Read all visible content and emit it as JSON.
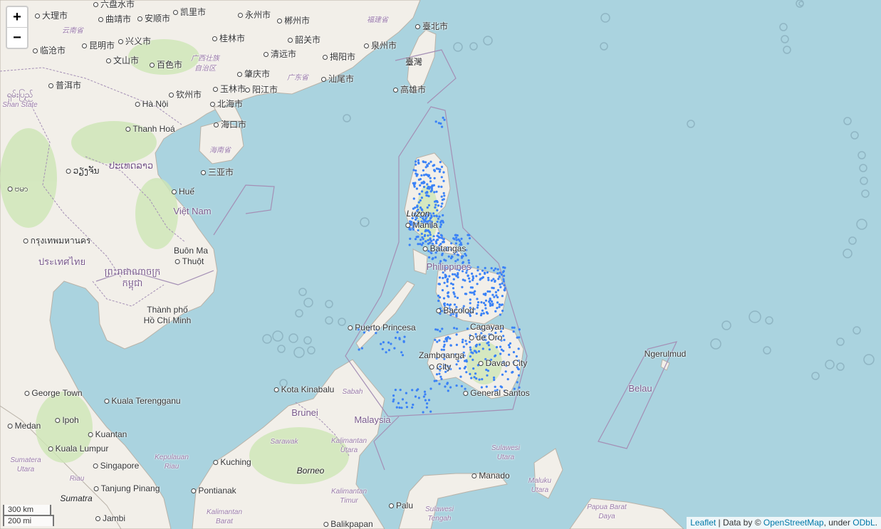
{
  "zoom": {
    "in_label": "+",
    "out_label": "−"
  },
  "scale": {
    "km_label": "300 km",
    "mi_label": "200 mi"
  },
  "attribution": {
    "leaflet_link": "Leaflet",
    "separator": " | Data by © ",
    "osm_link": "OpenStreetMap",
    "under_text": ", under ",
    "odbl_link": "ODbL",
    "end": "."
  },
  "colors": {
    "sea": "#aad3df",
    "land": "#f2efe9",
    "forest": "#cde6b5",
    "border": "#a48fb5",
    "marker": "#3b82f6"
  },
  "labels": {
    "dali": "大理市",
    "liupanshui": "六盘水市",
    "kaili": "凯里市",
    "yongzhou": "永州市",
    "chenzhou": "郴州市",
    "yunnan": "云南省",
    "qujing": "曲靖市",
    "anshun": "安顺市",
    "fujian": "福建省",
    "taipei": "臺北市",
    "guilin": "桂林市",
    "shaoguan": "韶关市",
    "quanzhou": "泉州市",
    "lincang": "临沧市",
    "kunming": "昆明市",
    "xingyi": "兴义市",
    "taiwan": "臺灣",
    "guangxi": "广西壮族自治区",
    "qingyuan": "清远市",
    "jieyang": "揭阳市",
    "wenshan": "文山市",
    "baise": "百色市",
    "zhaoqing": "肇庆市",
    "guangdong": "广东省",
    "shanwei": "汕尾市",
    "puer": "普洱市",
    "yulin": "玉林市",
    "yangjiang": "阳江市",
    "kaohsiung": "高雄市",
    "shan_myanmar": "ရှမ်းပြည်",
    "qinzhou": "钦州市",
    "shan_state": "Shan State",
    "hanoi": "Hà Nội",
    "beihai": "北海市",
    "haikou": "海口市",
    "thanh_hoa": "Thanh Hoá",
    "hainan": "海南省",
    "sanya": "三亚市",
    "vientiane": "ວຽງຈັນ",
    "laos": "ປະເທດລາວ",
    "myanmar": "ဗမာ",
    "hue": "Huế",
    "luzon": "Luzon",
    "vietnam": "Việt Nam",
    "manila": "Manila",
    "bangkok": "กรุงเทพมหานคร",
    "buon_ma_thuot_1": "Buôn Ma",
    "buon_ma_thuot_2": "Thuột",
    "batangas": "Batangas",
    "thailand": "ประเทศไทย",
    "philippines": "Philippines",
    "cambodia_1": "ព្រះរាជាណាចក្រ",
    "cambodia_2": "កម្ពុជា",
    "hcmc_1": "Thành phố",
    "hcmc_2": "Hồ Chí Minh",
    "bacolod": "Bacolod",
    "cagayan_1": "Cagayan",
    "cagayan_2": "de Oro",
    "puerto_princesa": "Puerto Princesa",
    "ngerulmud": "Ngerulmud",
    "zamboanga_1": "Zamboanga",
    "zamboanga_2": "City",
    "davao": "Davao City",
    "belau": "Belau",
    "kota_kinabalu": "Kota Kinabalu",
    "sabah": "Sabah",
    "george_town": "George Town",
    "general_santos": "General Santos",
    "kuala_terengganu": "Kuala Terengganu",
    "brunei": "Brunei",
    "ipoh": "Ipoh",
    "malaysia": "Malaysia",
    "medan": "Medan",
    "kuantan": "Kuantan",
    "sarawak": "Sarawak",
    "kalimantan_utara_1": "Kalimantan",
    "kalimantan_utara_2": "Utara",
    "kuala_lumpur": "Kuala Lumpur",
    "kepulauan_riau_1": "Kepulauan",
    "kepulauan_riau_2": "Riau",
    "sulawesi_utara_1": "Sulawesi",
    "sulawesi_utara_2": "Utara",
    "sumatera_utara_1": "Sumatera",
    "sumatera_utara_2": "Utara",
    "singapore": "Singapore",
    "kuching": "Kuching",
    "borneo": "Borneo",
    "manado": "Manado",
    "riau": "Riau",
    "tanjung_pinang": "Tanjung Pinang",
    "pontianak": "Pontianak",
    "maluku_utara_1": "Maluku",
    "maluku_utara_2": "Utara",
    "kalimantan_timur_1": "Kalimantan",
    "kalimantan_timur_2": "Timur",
    "sumatra": "Sumatra",
    "palu": "Palu",
    "sulawesi_tengah_1": "Sulawesi",
    "sulawesi_tengah_2": "Tengah",
    "papua_barat_1": "Papua Barat",
    "papua_barat_2": "Daya",
    "kalimantan_barat_1": "Kalimantan",
    "kalimantan_barat_2": "Barat",
    "jambi": "Jambi",
    "balikpapan": "Balikpapan"
  }
}
